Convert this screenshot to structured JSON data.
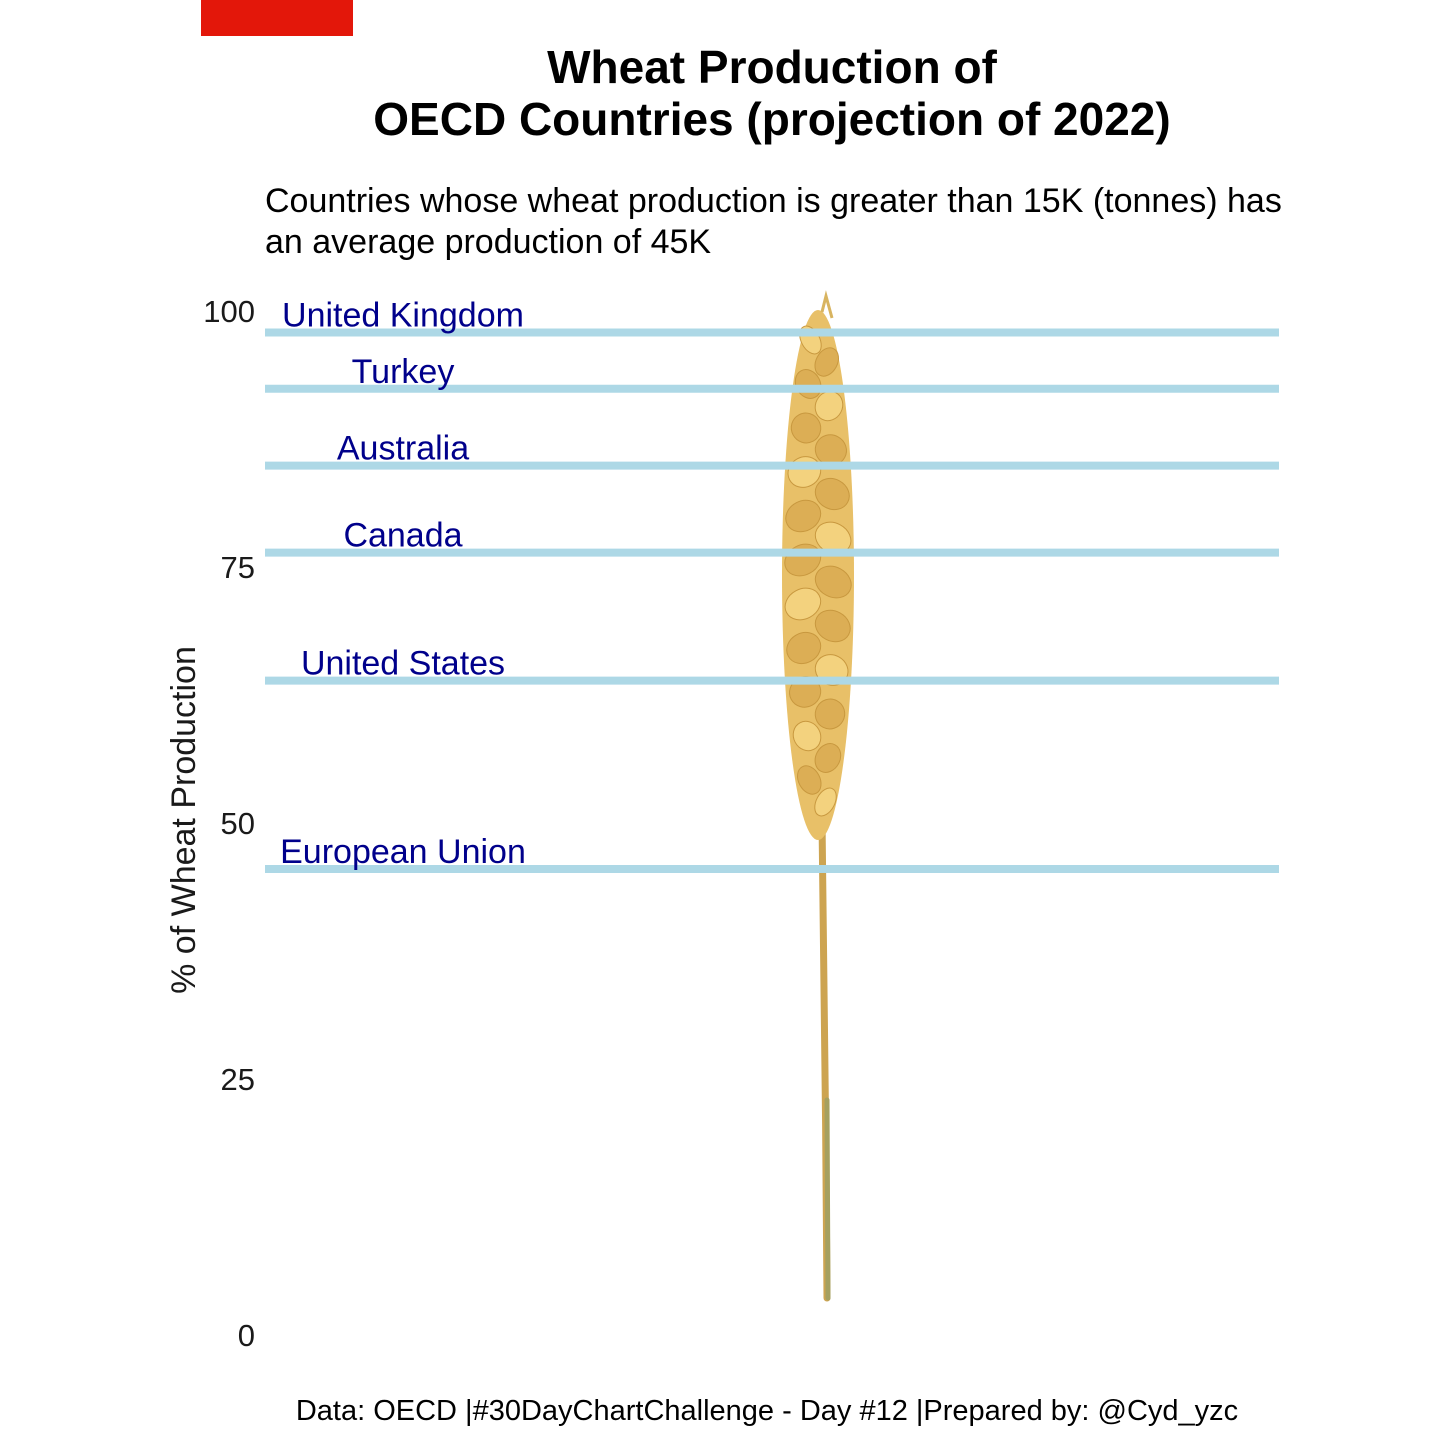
{
  "header": {
    "title_line1": "Wheat Production of",
    "title_line2": "OECD Countries (projection of 2022)",
    "subtitle_line1": "Countries whose wheat production is greater than 15K (tonnes) has",
    "subtitle_line2": "an average production of 45K",
    "accent_color": "#e3170a"
  },
  "footer": {
    "caption": "Data: OECD |#30DayChartChallenge - Day #12 |Prepared by: @Cyd_yzc"
  },
  "chart_data": {
    "type": "line",
    "ylabel": "% of Wheat Production",
    "ylim": [
      0,
      100
    ],
    "y_ticks": [
      0,
      25,
      50,
      75,
      100
    ],
    "grid": false,
    "line_color": "#add8e6",
    "label_color": "#00008b",
    "series": [
      {
        "name": "United Kingdom",
        "value": 98
      },
      {
        "name": "Turkey",
        "value": 92.5
      },
      {
        "name": "Australia",
        "value": 85
      },
      {
        "name": "Canada",
        "value": 76.5
      },
      {
        "name": "United States",
        "value": 64
      },
      {
        "name": "European Union",
        "value": 45.6
      }
    ],
    "background_image": "wheat-stalk"
  }
}
